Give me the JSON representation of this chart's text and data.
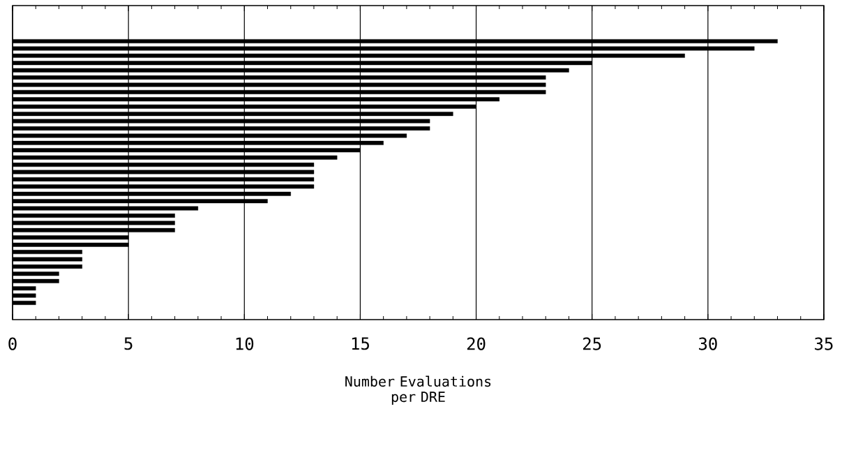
{
  "chart_data": {
    "type": "bar",
    "orientation": "horizontal",
    "xlabel": "Number Evaluations per DRE",
    "categories": [
      null,
      null,
      null,
      null,
      null,
      null,
      null,
      null,
      null,
      null,
      null,
      null,
      null,
      null,
      null,
      null,
      null,
      null,
      null,
      null,
      null,
      null,
      null,
      null,
      null,
      null,
      null,
      null,
      null,
      null,
      null,
      null,
      null,
      null,
      null,
      null,
      null
    ],
    "values": [
      33,
      32,
      29,
      25,
      24,
      23,
      23,
      23,
      21,
      20,
      19,
      18,
      18,
      17,
      16,
      15,
      14,
      13,
      13,
      13,
      13,
      12,
      11,
      8,
      7,
      7,
      7,
      5,
      5,
      3,
      3,
      3,
      2,
      2,
      1,
      1,
      1
    ],
    "color": "#000000",
    "xlim": [
      0,
      35
    ],
    "xticks": [
      0,
      5,
      10,
      15,
      20,
      25,
      30,
      35
    ],
    "grid": "x",
    "tick_labels": "x"
  }
}
